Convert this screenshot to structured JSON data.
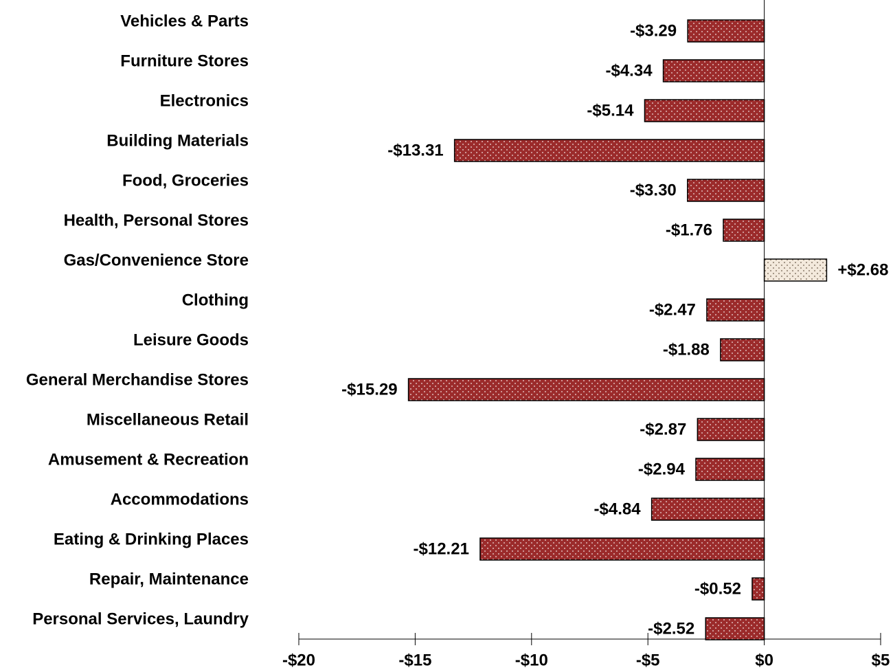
{
  "chart_data": {
    "type": "hbar",
    "categories": [
      "Vehicles & Parts",
      "Furniture Stores",
      "Electronics",
      "Building Materials",
      "Food, Groceries",
      "Health, Personal Stores",
      "Gas/Convenience Store",
      "Clothing",
      "Leisure Goods",
      "General Merchandise Stores",
      "Miscellaneous Retail",
      "Amusement & Recreation",
      "Accommodations",
      "Eating & Drinking Places",
      "Repair, Maintenance",
      "Personal Services, Laundry"
    ],
    "values": [
      -3.29,
      -4.34,
      -5.14,
      -13.31,
      -3.3,
      -1.76,
      2.68,
      -2.47,
      -1.88,
      -15.29,
      -2.87,
      -2.94,
      -4.84,
      -12.21,
      -0.52,
      -2.52
    ],
    "value_labels": [
      "-$3.29",
      "-$4.34",
      "-$5.14",
      "-$13.31",
      "-$3.30",
      "-$1.76",
      "+$2.68",
      "-$2.47",
      "-$1.88",
      "-$15.29",
      "-$2.87",
      "-$2.94",
      "-$4.84",
      "-$12.21",
      "-$0.52",
      "-$2.52"
    ],
    "negative_color": "#9b2b2b",
    "positive_color": "#f3e9dc",
    "xlim": [
      -20,
      5
    ],
    "xticks": [
      {
        "value": -20,
        "label": "-$20"
      },
      {
        "value": -15,
        "label": "-$15"
      },
      {
        "value": -10,
        "label": "-$10"
      },
      {
        "value": -5,
        "label": "-$5"
      },
      {
        "value": 0,
        "label": "$0"
      },
      {
        "value": 5,
        "label": "$5"
      }
    ]
  }
}
